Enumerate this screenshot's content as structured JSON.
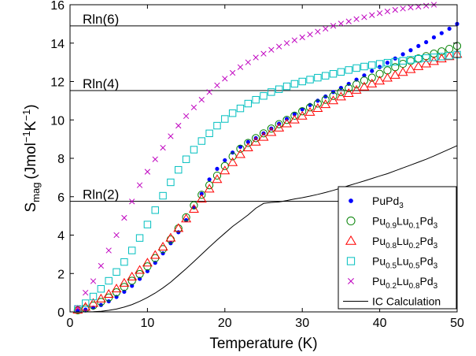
{
  "chart_data": {
    "type": "scatter",
    "title": "",
    "xlabel": "Temperature (K)",
    "ylabel": {
      "main": "S",
      "main_sub": "mag",
      "unit_open": "(Jmol",
      "unit_exp1": "−1",
      "unit_mid": "K",
      "unit_exp2": "−1",
      "unit_close": ")"
    },
    "xlim": [
      0,
      50
    ],
    "ylim": [
      0,
      16
    ],
    "xticks": [
      0,
      10,
      20,
      30,
      40,
      50
    ],
    "yticks": [
      0,
      2,
      4,
      6,
      8,
      10,
      12,
      14,
      16
    ],
    "grid": false,
    "legend_position": "bottom-right",
    "reference_lines": [
      {
        "label": "Rln(6)",
        "y": 14.9
      },
      {
        "label": "Rln(4)",
        "y": 11.53
      },
      {
        "label": "Rln(2)",
        "y": 5.76
      }
    ],
    "series": [
      {
        "legend": {
          "base": "PuPd",
          "subs": [
            [
              "",
              "3"
            ]
          ]
        },
        "marker": "dot",
        "color": "#0000ff",
        "x": [
          1,
          2,
          3,
          4,
          5,
          6,
          7,
          8,
          9,
          10,
          11,
          12,
          13,
          14,
          15,
          16,
          17,
          18,
          19,
          20,
          21,
          22,
          23,
          24,
          25,
          26,
          27,
          28,
          29,
          30,
          31,
          32,
          33,
          34,
          35,
          36,
          37,
          38,
          39,
          40,
          41,
          42,
          43,
          44,
          45,
          46,
          47,
          48,
          49,
          50
        ],
        "y": [
          0.05,
          0.12,
          0.22,
          0.36,
          0.55,
          0.78,
          1.05,
          1.36,
          1.72,
          2.12,
          2.56,
          3.05,
          3.58,
          4.15,
          4.78,
          5.45,
          6.15,
          6.9,
          7.45,
          7.9,
          8.3,
          8.6,
          8.85,
          9.05,
          9.3,
          9.55,
          9.8,
          10.05,
          10.3,
          10.55,
          10.78,
          11.0,
          11.22,
          11.45,
          11.67,
          11.88,
          12.1,
          12.32,
          12.55,
          12.76,
          12.98,
          13.2,
          13.42,
          13.63,
          13.85,
          14.05,
          14.3,
          14.52,
          14.75,
          15.0
        ]
      },
      {
        "legend": {
          "base": "Pu",
          "subs": [
            [
              "",
              "0.9"
            ],
            [
              "Lu",
              "0.1"
            ],
            [
              "Pd",
              "3"
            ]
          ]
        },
        "marker": "circle",
        "color": "#008000",
        "x": [
          1,
          2,
          3,
          4,
          5,
          6,
          7,
          8,
          9,
          10,
          11,
          12,
          13,
          14,
          15,
          16,
          17,
          18,
          19,
          20,
          21,
          22,
          23,
          24,
          25,
          26,
          27,
          28,
          29,
          30,
          31,
          32,
          33,
          34,
          35,
          36,
          37,
          38,
          39,
          40,
          41,
          42,
          43,
          44,
          45,
          46,
          47,
          48,
          49,
          50
        ],
        "y": [
          0.08,
          0.18,
          0.33,
          0.52,
          0.75,
          1.02,
          1.3,
          1.62,
          1.97,
          2.37,
          2.8,
          3.27,
          3.77,
          4.35,
          4.93,
          5.55,
          6.1,
          6.6,
          7.1,
          7.6,
          8.1,
          8.5,
          8.8,
          9.05,
          9.3,
          9.55,
          9.78,
          10.0,
          10.22,
          10.45,
          10.65,
          10.85,
          11.05,
          11.25,
          11.45,
          11.65,
          11.85,
          12.05,
          12.2,
          12.4,
          12.58,
          12.75,
          12.92,
          13.07,
          13.2,
          13.32,
          13.45,
          13.57,
          13.7,
          13.85
        ]
      },
      {
        "legend": {
          "base": "Pu",
          "subs": [
            [
              "",
              "0.8"
            ],
            [
              "Lu",
              "0.2"
            ],
            [
              "Pd",
              "3"
            ]
          ]
        },
        "marker": "triangle",
        "color": "#ff0000",
        "x": [
          1,
          2,
          3,
          4,
          5,
          6,
          7,
          8,
          9,
          10,
          11,
          12,
          13,
          14,
          15,
          16,
          17,
          18,
          19,
          20,
          21,
          22,
          23,
          24,
          25,
          26,
          27,
          28,
          29,
          30,
          31,
          32,
          33,
          34,
          35,
          36,
          37,
          38,
          39,
          40,
          41,
          42,
          43,
          44,
          45,
          46,
          47,
          48,
          49,
          50
        ],
        "y": [
          0.1,
          0.25,
          0.45,
          0.68,
          0.92,
          1.2,
          1.5,
          1.82,
          2.17,
          2.55,
          2.95,
          3.38,
          3.85,
          4.35,
          4.85,
          5.35,
          5.88,
          6.4,
          6.9,
          7.35,
          7.78,
          8.2,
          8.55,
          8.85,
          9.1,
          9.35,
          9.58,
          9.8,
          10.0,
          10.2,
          10.4,
          10.6,
          10.8,
          11.0,
          11.2,
          11.38,
          11.55,
          11.72,
          11.88,
          12.03,
          12.18,
          12.33,
          12.48,
          12.63,
          12.78,
          12.92,
          13.05,
          13.18,
          13.3,
          13.42
        ]
      },
      {
        "legend": {
          "base": "Pu",
          "subs": [
            [
              "",
              "0.5"
            ],
            [
              "Lu",
              "0.5"
            ],
            [
              "Pd",
              "3"
            ]
          ]
        },
        "marker": "square",
        "color": "#00bfbf",
        "x": [
          1,
          2,
          3,
          4,
          5,
          6,
          7,
          8,
          9,
          10,
          11,
          12,
          13,
          14,
          15,
          16,
          17,
          18,
          19,
          20,
          21,
          22,
          23,
          24,
          25,
          26,
          27,
          28,
          29,
          30,
          31,
          32,
          33,
          34,
          35,
          36,
          37,
          38,
          39,
          40,
          41,
          42,
          43,
          44,
          45,
          46,
          47,
          48,
          49,
          50
        ],
        "y": [
          0.15,
          0.45,
          0.8,
          1.2,
          1.62,
          2.08,
          2.6,
          3.2,
          3.85,
          4.55,
          5.3,
          6.05,
          6.75,
          7.4,
          7.95,
          8.45,
          8.9,
          9.3,
          9.7,
          10.05,
          10.35,
          10.6,
          10.85,
          11.05,
          11.25,
          11.45,
          11.6,
          11.75,
          11.88,
          12.0,
          12.1,
          12.2,
          12.3,
          12.4,
          12.5,
          12.6,
          12.7,
          12.78,
          12.85,
          12.92,
          12.98,
          13.03,
          13.08,
          13.13,
          13.18,
          13.22,
          13.26,
          13.3,
          13.34,
          13.4
        ]
      },
      {
        "legend": {
          "base": "Pu",
          "subs": [
            [
              "",
              "0.2"
            ],
            [
              "Lu",
              "0.8"
            ],
            [
              "Pd",
              "3"
            ]
          ]
        },
        "marker": "cross",
        "color": "#bf00bf",
        "x": [
          1,
          2,
          3,
          4,
          5,
          6,
          7,
          8,
          9,
          10,
          11,
          12,
          13,
          14,
          15,
          16,
          17,
          18,
          19,
          20,
          21,
          22,
          23,
          24,
          25,
          26,
          27,
          28,
          29,
          30,
          31,
          32,
          33,
          34,
          35,
          36,
          37,
          38,
          39,
          40,
          41,
          42,
          43,
          44,
          45,
          46,
          47
        ],
        "y": [
          0.2,
          1.0,
          1.6,
          2.4,
          3.2,
          4.0,
          4.9,
          5.75,
          6.6,
          7.3,
          7.95,
          8.55,
          9.15,
          9.7,
          10.2,
          10.65,
          11.05,
          11.45,
          11.8,
          12.15,
          12.45,
          12.75,
          13.0,
          13.25,
          13.45,
          13.65,
          13.82,
          14.0,
          14.15,
          14.3,
          14.45,
          14.6,
          14.75,
          14.9,
          15.02,
          15.13,
          15.25,
          15.35,
          15.46,
          15.56,
          15.65,
          15.73,
          15.8,
          15.86,
          15.9,
          15.95,
          16.0
        ]
      },
      {
        "legend": {
          "base": "IC Calculation",
          "subs": []
        },
        "marker": "line",
        "color": "#000000",
        "x": [
          1,
          2,
          3,
          4,
          5,
          6,
          7,
          8,
          9,
          10,
          11,
          12,
          13,
          14,
          15,
          16,
          17,
          18,
          19,
          20,
          21,
          22,
          23,
          24,
          25,
          26,
          27,
          28,
          29,
          30,
          31,
          32,
          33,
          34,
          35,
          36,
          37,
          38,
          39,
          40,
          41,
          42,
          43,
          44,
          45,
          46,
          47,
          48,
          49,
          50
        ],
        "y": [
          0,
          0,
          0.01,
          0.03,
          0.08,
          0.15,
          0.25,
          0.38,
          0.55,
          0.75,
          0.98,
          1.25,
          1.55,
          1.9,
          2.25,
          2.62,
          3.0,
          3.38,
          3.75,
          4.1,
          4.45,
          4.75,
          5.05,
          5.4,
          5.65,
          5.7,
          5.73,
          5.8,
          5.88,
          5.95,
          6.03,
          6.12,
          6.22,
          6.33,
          6.45,
          6.58,
          6.7,
          6.82,
          6.95,
          7.08,
          7.2,
          7.35,
          7.5,
          7.65,
          7.8,
          7.95,
          8.12,
          8.3,
          8.48,
          8.66
        ]
      }
    ]
  }
}
